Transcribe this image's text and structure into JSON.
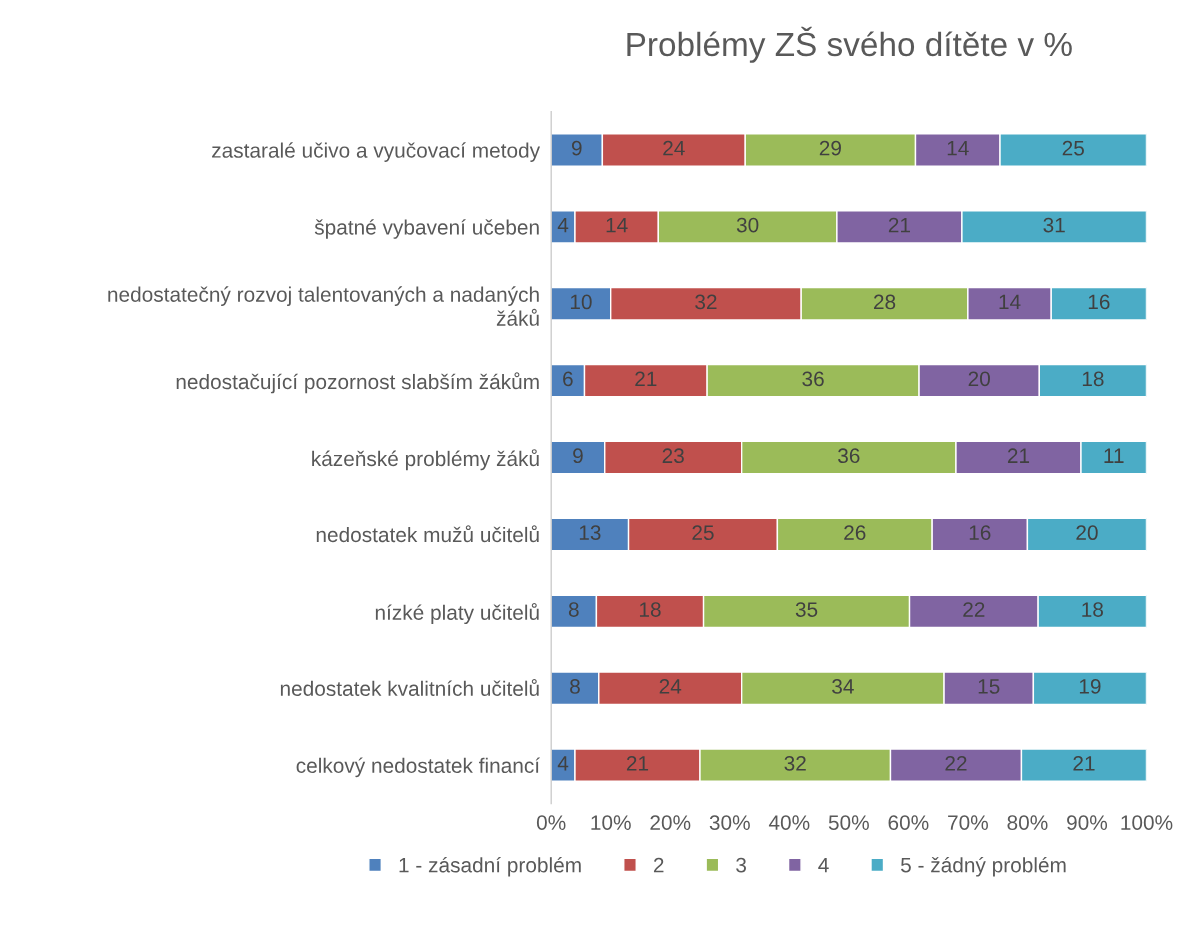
{
  "chart_data": {
    "type": "bar",
    "orientation": "horizontal",
    "stacked": true,
    "title": "Problémy ZŠ svého dítěte v %",
    "categories": [
      "zastaralé učivo a vyučovací metody",
      "špatné vybavení učeben",
      "nedostatečný rozvoj talentovaných a nadaných\nžáků",
      "nedostačující pozornost slabším žákům",
      "kázeňské problémy žáků",
      "nedostatek mužů učitelů",
      "nízké platy učitelů",
      "nedostatek kvalitních učitelů",
      "celkový nedostatek financí"
    ],
    "series": [
      {
        "name": "1 - zásadní problém",
        "color": "#4f81bd",
        "values": [
          8.6,
          4,
          10,
          5.6,
          9,
          13,
          7.6,
          8,
          4
        ],
        "value_labels": [
          "9",
          "4",
          "10",
          "6",
          "9",
          "13",
          "8",
          "8",
          "4"
        ]
      },
      {
        "name": "2",
        "color": "#c0504d",
        "values": [
          24.0,
          14,
          32,
          20.6,
          23,
          25,
          18.0,
          24,
          21
        ],
        "value_labels": [
          "24",
          "14",
          "32",
          "21",
          "23",
          "25",
          "18",
          "24",
          "21"
        ]
      },
      {
        "name": "3",
        "color": "#9bbb59",
        "values": [
          28.6,
          30,
          28,
          35.6,
          36,
          26,
          34.6,
          34,
          32
        ],
        "value_labels": [
          "29",
          "30",
          "28",
          "36",
          "36",
          "26",
          "35",
          "34",
          "32"
        ]
      },
      {
        "name": "4",
        "color": "#8064a2",
        "values": [
          14.2,
          21,
          14,
          20.2,
          21,
          16,
          21.6,
          15,
          22
        ],
        "value_labels": [
          "14",
          "21",
          "14",
          "20",
          "21",
          "16",
          "22",
          "15",
          "22"
        ]
      },
      {
        "name": "5 - žádný problém",
        "color": "#4bacc6",
        "values": [
          24.6,
          31,
          16,
          18.0,
          11,
          20,
          18.2,
          19,
          21
        ],
        "value_labels": [
          "25",
          "31",
          "16",
          "18",
          "11",
          "20",
          "18",
          "19",
          "21"
        ]
      }
    ],
    "xlim": [
      0,
      100
    ],
    "xticks": [
      {
        "value": 0,
        "label": "0%"
      },
      {
        "value": 10,
        "label": "10%"
      },
      {
        "value": 20,
        "label": "20%"
      },
      {
        "value": 30,
        "label": "30%"
      },
      {
        "value": 40,
        "label": "40%"
      },
      {
        "value": 50,
        "label": "50%"
      },
      {
        "value": 60,
        "label": "60%"
      },
      {
        "value": 70,
        "label": "70%"
      },
      {
        "value": 80,
        "label": "80%"
      },
      {
        "value": 90,
        "label": "90%"
      },
      {
        "value": 100,
        "label": "100%"
      }
    ],
    "grid": false,
    "legend": "bottom"
  }
}
